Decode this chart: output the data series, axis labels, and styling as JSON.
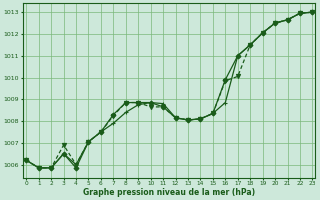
{
  "x": [
    0,
    1,
    2,
    3,
    4,
    5,
    6,
    7,
    8,
    9,
    10,
    11,
    12,
    13,
    14,
    15,
    16,
    17,
    18,
    19,
    20,
    21,
    22,
    23
  ],
  "line1": [
    1006.2,
    1005.85,
    1005.85,
    1006.5,
    1006.0,
    1007.05,
    1007.5,
    1007.9,
    1008.4,
    1008.75,
    1008.85,
    1008.8,
    1008.15,
    1008.05,
    1008.1,
    1008.35,
    1008.85,
    1011.0,
    1011.5,
    1012.05,
    1012.5,
    1012.65,
    1012.95,
    1013.0
  ],
  "line2": [
    1006.2,
    1005.85,
    1005.85,
    1006.9,
    1006.0,
    1007.05,
    1007.5,
    1008.25,
    1008.85,
    1008.85,
    1008.65,
    1008.65,
    1008.15,
    1008.05,
    1008.1,
    1008.35,
    1009.85,
    1010.05,
    1011.5,
    1012.05,
    1012.5,
    1012.65,
    1012.95,
    1013.0
  ],
  "line3": [
    1006.2,
    1005.85,
    1005.85,
    1006.5,
    1005.85,
    1007.05,
    1007.5,
    1008.3,
    1008.85,
    1008.85,
    1008.85,
    1008.65,
    1008.15,
    1008.05,
    1008.1,
    1008.35,
    1009.9,
    1011.0,
    1011.5,
    1012.05,
    1012.5,
    1012.65,
    1012.95,
    1013.0
  ],
  "bg_color": "#cde8da",
  "line_color": "#1a5c1a",
  "grid_color": "#7ab87a",
  "xlabel": "Graphe pression niveau de la mer (hPa)",
  "ylim": [
    1005.4,
    1013.4
  ],
  "xlim": [
    -0.3,
    23.2
  ],
  "yticks": [
    1006,
    1007,
    1008,
    1009,
    1010,
    1011,
    1012,
    1013
  ],
  "xticks": [
    0,
    1,
    2,
    3,
    4,
    5,
    6,
    7,
    8,
    9,
    10,
    11,
    12,
    13,
    14,
    15,
    16,
    17,
    18,
    19,
    20,
    21,
    22,
    23
  ]
}
